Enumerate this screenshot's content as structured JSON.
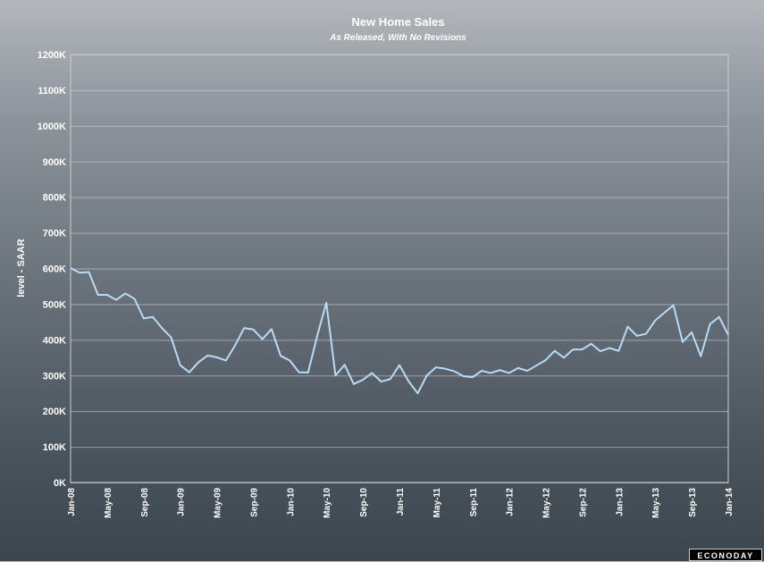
{
  "chart_data": {
    "type": "line",
    "title": "New Home Sales",
    "subtitle": "As Released, With No Revisions",
    "xlabel": "",
    "ylabel": "level - SAAR",
    "ylim": [
      0,
      1200000
    ],
    "yticks": [
      "0K",
      "100K",
      "200K",
      "300K",
      "400K",
      "500K",
      "600K",
      "700K",
      "800K",
      "900K",
      "1000K",
      "1100K",
      "1200K"
    ],
    "xticks": [
      "Jan-08",
      "May-08",
      "Sep-08",
      "Jan-09",
      "May-09",
      "Sep-09",
      "Jan-10",
      "May-10",
      "Sep-10",
      "Jan-11",
      "May-11",
      "Sep-11",
      "Jan-12",
      "May-12",
      "Sep-12",
      "Jan-13",
      "May-13",
      "Sep-13",
      "Jan-14"
    ],
    "grid": true,
    "line_color": "#b8dcf4",
    "series": [
      {
        "values": [
          601000,
          588000,
          590000,
          526000,
          526000,
          512000,
          530000,
          515000,
          460000,
          464000,
          433000,
          407000,
          329000,
          309000,
          337000,
          356000,
          351000,
          342000,
          384000,
          433000,
          429000,
          402000,
          430000,
          355000,
          342000,
          309000,
          308000,
          411000,
          504000,
          300000,
          330000,
          276000,
          288000,
          307000,
          283000,
          290000,
          329000,
          284000,
          250000,
          300000,
          323000,
          319000,
          312000,
          298000,
          295000,
          313000,
          307000,
          315000,
          307000,
          321000,
          313000,
          328000,
          343000,
          369000,
          350000,
          373000,
          373000,
          389000,
          368000,
          377000,
          369000,
          437000,
          411000,
          417000,
          454000,
          476000,
          497000,
          394000,
          421000,
          354000,
          444000,
          464000,
          414000
        ]
      }
    ]
  },
  "branding": {
    "logo_text": "ECONODAY"
  }
}
